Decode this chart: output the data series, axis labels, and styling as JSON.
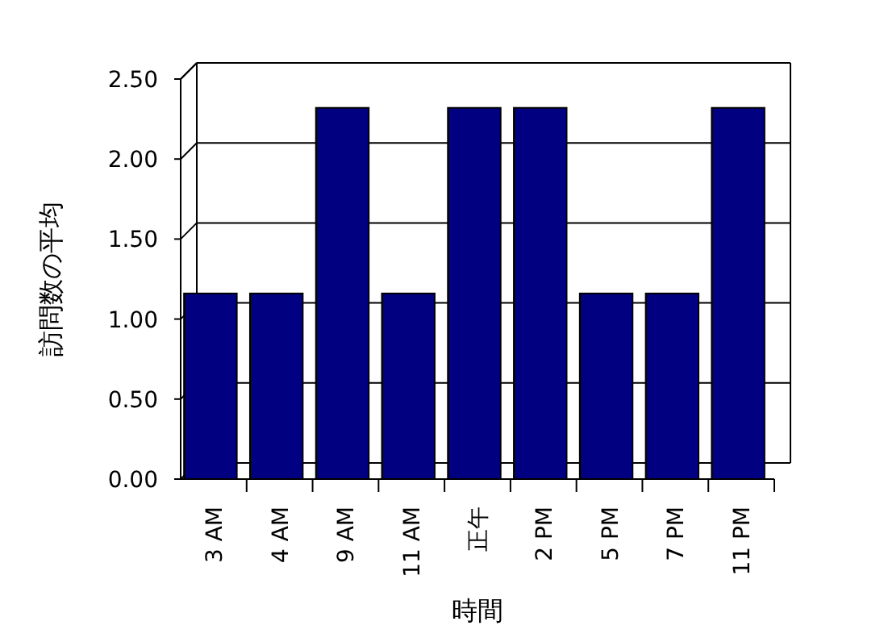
{
  "chart_data": {
    "type": "bar",
    "xlabel": "時間",
    "ylabel": "訪問数の平均",
    "categories": [
      "3 AM",
      "4 AM",
      "9 AM",
      "11 AM",
      "正午",
      "2 PM",
      "5 PM",
      "7 PM",
      "11 PM"
    ],
    "values": [
      1.16,
      1.16,
      2.32,
      1.16,
      2.32,
      2.32,
      1.16,
      1.16,
      2.32
    ],
    "color": "#000080",
    "ylim": [
      0,
      2.5
    ],
    "yticks": [
      {
        "value": 0,
        "label": "0.00"
      },
      {
        "value": 0.5,
        "label": "0.50"
      },
      {
        "value": 1,
        "label": "1.00"
      },
      {
        "value": 1.5,
        "label": "1.50"
      },
      {
        "value": 2,
        "label": "2.00"
      },
      {
        "value": 2.5,
        "label": "2.50"
      }
    ],
    "grid": "y"
  }
}
